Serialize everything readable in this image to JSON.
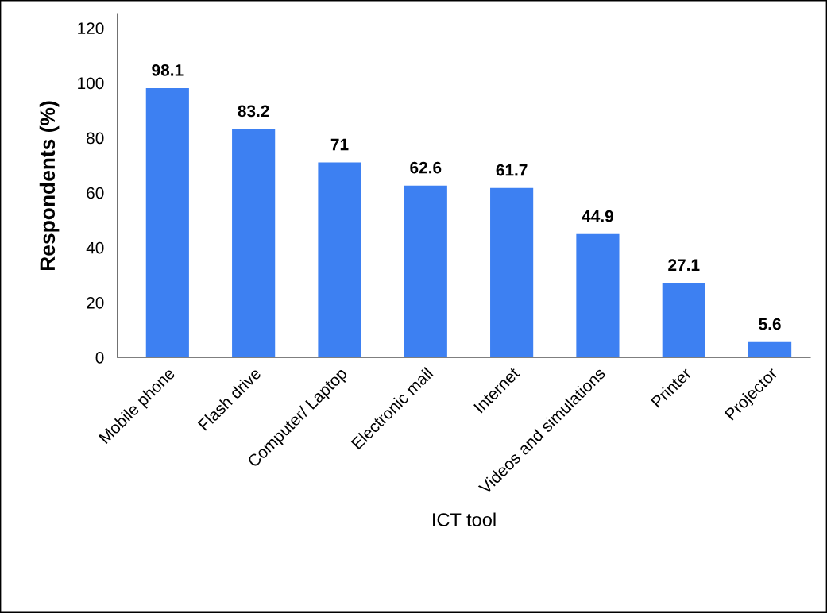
{
  "chart_data": {
    "type": "bar",
    "xlabel": "ICT tool",
    "ylabel": "Respondents (%)",
    "categories": [
      "Mobile phone",
      "Flash drive",
      "Computer/ Laptop",
      "Electronic mail",
      "Internet",
      "Videos and simulations",
      "Printer",
      "Projector"
    ],
    "values": [
      98.1,
      83.2,
      71,
      62.6,
      61.7,
      44.9,
      27.1,
      5.6
    ],
    "color": "#3d80f2",
    "ylim": [
      0,
      125
    ],
    "yticks": [
      0,
      20,
      40,
      60,
      80,
      100,
      120
    ],
    "grid": false,
    "data_labels": true
  }
}
